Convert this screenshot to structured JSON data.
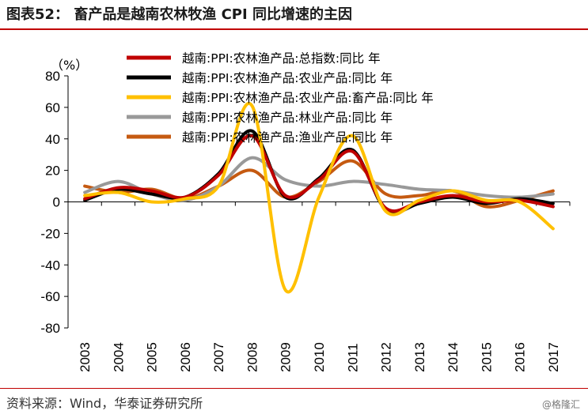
{
  "header": {
    "title": "图表52： 畜产品是越南农林牧渔 CPI 同比增速的主因"
  },
  "footer": {
    "source": "资料来源：Wind，华泰证券研究所",
    "watermark": "@格隆汇"
  },
  "chart_data": {
    "type": "line",
    "unit_label": "（%）",
    "categories": [
      "2003",
      "2004",
      "2005",
      "2006",
      "2007",
      "2008",
      "2009",
      "2010",
      "2011",
      "2012",
      "2013",
      "2014",
      "2015",
      "2016",
      "2017"
    ],
    "ylim": [
      -80,
      80
    ],
    "yticks": [
      -80,
      -60,
      -40,
      -20,
      0,
      20,
      40,
      60,
      80
    ],
    "grid": false,
    "legend_position": "top-right",
    "series": [
      {
        "name": "越南:PPI:农林渔产品:总指数:同比 年",
        "color": "#c00000",
        "values": [
          2,
          9,
          7,
          3,
          17,
          42,
          4,
          14,
          32,
          -4,
          0,
          4,
          0,
          1,
          -3
        ]
      },
      {
        "name": "越南:PPI:农林渔产品:农业产品:同比 年",
        "color": "#000000",
        "values": [
          1,
          8,
          5,
          3,
          18,
          45,
          3,
          15,
          33,
          -5,
          -1,
          3,
          -1,
          2,
          -1
        ]
      },
      {
        "name": "越南:PPI:农林渔产品:农业产品:畜产品:同比 年",
        "color": "#ffc000",
        "values": [
          4,
          6,
          0,
          2,
          10,
          61,
          -56,
          3,
          42,
          -6,
          1,
          7,
          1,
          0,
          -17
        ]
      },
      {
        "name": "越南:PPI:农林渔产品:林业产品:同比 年",
        "color": "#999999",
        "values": [
          6,
          13,
          5,
          1,
          10,
          28,
          14,
          10,
          13,
          11,
          8,
          7,
          4,
          3,
          5
        ]
      },
      {
        "name": "越南:PPI:农林渔产品:渔业产品:同比 年",
        "color": "#c55a11",
        "values": [
          10,
          6,
          8,
          2,
          10,
          20,
          3,
          13,
          26,
          5,
          4,
          7,
          -3,
          1,
          7
        ]
      }
    ]
  }
}
